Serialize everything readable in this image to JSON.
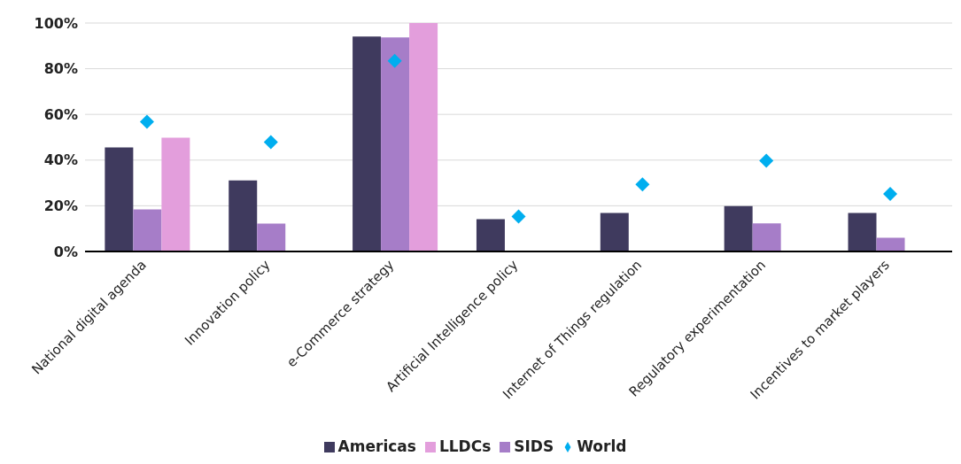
{
  "chart_data": {
    "type": "bar",
    "categories": [
      "National digital agenda",
      "Innovation policy",
      "e-Commerce strategy",
      "Artificial Intelligence policy",
      "Internet of Things regulation",
      "Regulatory experimentation",
      "Incentives to market players"
    ],
    "series": [
      {
        "name": "Americas",
        "color": "#3f3a5e",
        "values": [
          45.5,
          31.1,
          94.1,
          14.1,
          16.9,
          19.9,
          16.9
        ]
      },
      {
        "name": "SIDS",
        "color": "#a67dc8",
        "values": [
          18.4,
          12.2,
          93.7,
          null,
          null,
          12.3,
          6.0
        ]
      },
      {
        "name": "LLDCs",
        "color": "#e39edc",
        "values": [
          49.8,
          null,
          100,
          null,
          null,
          null,
          null
        ]
      },
      {
        "name": "World",
        "type": "scatter",
        "marker": "diamond",
        "color": "#00aeef",
        "values": [
          56.8,
          47.9,
          83.4,
          15.3,
          29.4,
          39.7,
          25.2
        ]
      }
    ],
    "ylim": [
      0,
      100
    ],
    "yticks": [
      {
        "value": 0,
        "label": "0%"
      },
      {
        "value": 20,
        "label": "20%"
      },
      {
        "value": 40,
        "label": "40%"
      },
      {
        "value": 60,
        "label": "60%"
      },
      {
        "value": 80,
        "label": "80%"
      },
      {
        "value": 100,
        "label": "100%"
      }
    ],
    "grid": "y",
    "legend": "bottom"
  }
}
